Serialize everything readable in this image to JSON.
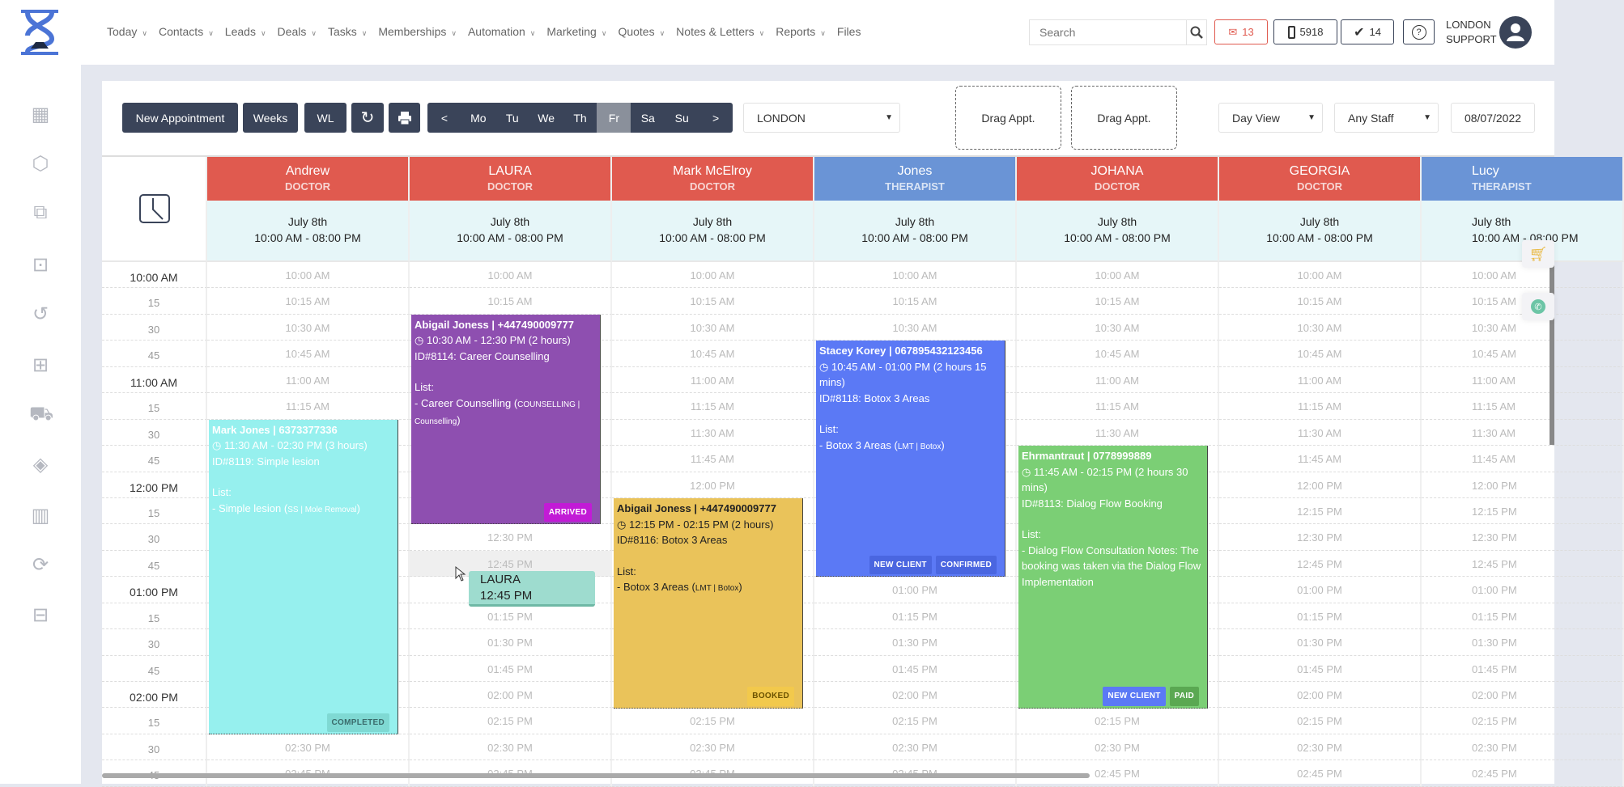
{
  "header": {
    "nav": [
      "Today",
      "Contacts",
      "Leads",
      "Deals",
      "Tasks",
      "Memberships",
      "Automation",
      "Marketing",
      "Quotes",
      "Notes & Letters",
      "Reports",
      "Files"
    ],
    "nav_chevrons": [
      true,
      true,
      true,
      true,
      true,
      true,
      true,
      true,
      true,
      true,
      true,
      false
    ],
    "search_placeholder": "Search",
    "mail_count": "13",
    "phone_count": "5918",
    "tasks_count": "14",
    "user_line1": "LONDON",
    "user_line2": "SUPPORT"
  },
  "sidebar": {
    "icons": [
      "calendar-icon",
      "box-icon",
      "copy-icon",
      "calendar-download-icon",
      "history-icon",
      "gift-icon",
      "cart-icon",
      "tag-icon",
      "report-icon",
      "user-sync-icon",
      "briefcase-icon"
    ]
  },
  "toolbar": {
    "new_appointment": "New Appointment",
    "weeks": "Weeks",
    "wl": "WL",
    "days": [
      "<",
      "Mo",
      "Tu",
      "We",
      "Th",
      "Fr",
      "Sa",
      "Su",
      ">"
    ],
    "active_day": "Fr",
    "location": "LONDON",
    "drag1": "Drag Appt.",
    "drag2": "Drag Appt.",
    "view": "Day View",
    "staff": "Any Staff",
    "date": "08/07/2022"
  },
  "colors": {
    "doctor": "#e05a4f",
    "therapist": "#6a94d6"
  },
  "staff": [
    {
      "name": "Andrew",
      "role": "DOCTOR",
      "date": "July 8th",
      "hours": "10:00 AM - 08:00 PM"
    },
    {
      "name": "LAURA",
      "role": "DOCTOR",
      "date": "July 8th",
      "hours": "10:00 AM - 08:00 PM"
    },
    {
      "name": "Mark McElroy",
      "role": "DOCTOR",
      "date": "July 8th",
      "hours": "10:00 AM - 08:00 PM"
    },
    {
      "name": "Jones",
      "role": "THERAPIST",
      "date": "July 8th",
      "hours": "10:00 AM - 08:00 PM"
    },
    {
      "name": "JOHANA",
      "role": "DOCTOR",
      "date": "July 8th",
      "hours": "10:00 AM - 08:00 PM"
    },
    {
      "name": "GEORGIA",
      "role": "DOCTOR",
      "date": "July 8th",
      "hours": "10:00 AM - 08:00 PM"
    },
    {
      "name": "Lucy",
      "role": "THERAPIST",
      "date": "July 8th",
      "hours": "10:00 AM - 08:00 PM"
    }
  ],
  "time_labels": [
    "10:00 AM",
    "15",
    "30",
    "45",
    "11:00 AM",
    "15",
    "30",
    "45",
    "12:00 PM",
    "15",
    "30",
    "45",
    "01:00 PM",
    "15",
    "30",
    "45",
    "02:00 PM",
    "15",
    "30",
    "45"
  ],
  "slots": [
    "10:00 AM",
    "10:15 AM",
    "10:30 AM",
    "10:45 AM",
    "11:00 AM",
    "11:15 AM",
    "11:30 AM",
    "11:45 AM",
    "12:00 PM",
    "12:15 PM",
    "12:30 PM",
    "12:45 PM",
    "01:00 PM",
    "01:15 PM",
    "01:30 PM",
    "01:45 PM",
    "02:00 PM",
    "02:15 PM",
    "02:30 PM",
    "02:45 PM"
  ],
  "appointments": [
    {
      "staff": 0,
      "start": "11:30 AM",
      "end": "02:30 PM",
      "color": "#96f0ee",
      "lines": [
        "Mark Jones | 6373377336",
        "11:30 AM - 02:30 PM (3 hours)",
        "ID#8119: Simple lesion",
        "",
        "List:",
        "- Simple lesion (",
        "SS | Mole Removal",
        ")"
      ],
      "badges": [
        {
          "text": "COMPLETED",
          "color": "#7fd9d3",
          "fg": "#3a6b6b"
        }
      ]
    },
    {
      "staff": 1,
      "start": "10:30 AM",
      "end": "12:30 PM",
      "color": "#8e4fb0",
      "lines": [
        "Abigail Joness | +447490009777",
        "10:30 AM - 12:30 PM (2 hours)",
        "ID#8114: Career Counselling",
        "",
        "List:",
        "- Career Counselling (",
        "COUNSELLING | Counselling",
        ")"
      ],
      "badges": [
        {
          "text": "ARRIVED",
          "color": "#c21bd6",
          "fg": "#fff"
        }
      ]
    },
    {
      "staff": 2,
      "start": "12:15 PM",
      "end": "02:15 PM",
      "color": "#eac35a",
      "dark": true,
      "lines": [
        "Abigail Joness | +447490009777",
        "12:15 PM - 02:15 PM (2 hours)",
        "ID#8116: Botox 3 Areas",
        "",
        "List:",
        "- Botox 3 Areas (",
        "LMT | Botox",
        ")"
      ],
      "badges": [
        {
          "text": "BOOKED",
          "color": "#f2c94c",
          "fg": "#6b5200"
        }
      ]
    },
    {
      "staff": 3,
      "start": "10:45 AM",
      "end": "01:00 PM",
      "color": "#5b79f5",
      "lines": [
        "Stacey Korey | 067895432123456",
        "10:45 AM - 01:00 PM (2 hours 15 mins)",
        "ID#8118: Botox 3 Areas",
        "",
        "List:",
        "- Botox 3 Areas (",
        "LMT | Botox",
        ")"
      ],
      "badges": [
        {
          "text": "NEW CLIENT",
          "color": "#4a66e0",
          "fg": "#fff"
        },
        {
          "text": "CONFIRMED",
          "color": "#4a66e0",
          "fg": "#fff"
        }
      ]
    },
    {
      "staff": 4,
      "start": "11:45 AM",
      "end": "02:15 PM",
      "color": "#7bcf75",
      "lines": [
        "Ehrmantraut | 0778999889",
        "11:45 AM - 02:15 PM (2 hours 30 mins)",
        "ID#8113: Dialog Flow Booking",
        "",
        "List:",
        "- Dialog Flow Consultation Notes: The booking was taken via the Dialog Flow Implementation",
        "",
        ""
      ],
      "badges": [
        {
          "text": "NEW CLIENT",
          "color": "#5b79f5",
          "fg": "#fff"
        },
        {
          "text": "PAID",
          "color": "#5aa852",
          "fg": "#fff"
        }
      ]
    }
  ],
  "hover": {
    "staff": 1,
    "slot": "12:45 PM",
    "tooltip_name": "LAURA",
    "tooltip_time": "12:45 PM"
  }
}
